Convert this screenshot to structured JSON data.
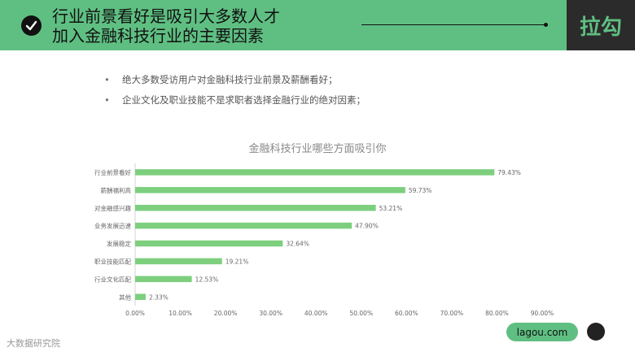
{
  "header": {
    "title_line1": "行业前景看好是吸引大多数人才",
    "title_line2": "加入金融科技行业的主要因素",
    "brand": "拉勾"
  },
  "bullets": [
    "绝大多数受访用户对金融科技行业前景及薪酬看好；",
    "企业文化及职业技能不是求职者选择金融行业的绝对因素；"
  ],
  "chart_data": {
    "type": "bar",
    "orientation": "horizontal",
    "title": "金融科技行业哪些方面吸引你",
    "categories": [
      "行业前景看好",
      "薪酬福利高",
      "对金融感兴趣",
      "业务发展迅速",
      "发展稳定",
      "职业技能匹配",
      "行业文化匹配",
      "其他"
    ],
    "values": [
      79.43,
      59.73,
      53.21,
      47.9,
      32.64,
      19.21,
      12.53,
      2.33
    ],
    "value_labels": [
      "79.43%",
      "59.73%",
      "53.21%",
      "47.90%",
      "32.64%",
      "19.21%",
      "12.53%",
      "2.33%"
    ],
    "xlim": [
      0,
      90
    ],
    "xticks": [
      "0.00%",
      "10.00%",
      "20.00%",
      "30.00%",
      "40.00%",
      "50.00%",
      "60.00%",
      "70.00%",
      "80.00%",
      "90.00%"
    ],
    "bar_color": "#7dcf7e",
    "grid": false
  },
  "footer": {
    "watermark": "大数据研究院",
    "pill": "lagou.com"
  }
}
